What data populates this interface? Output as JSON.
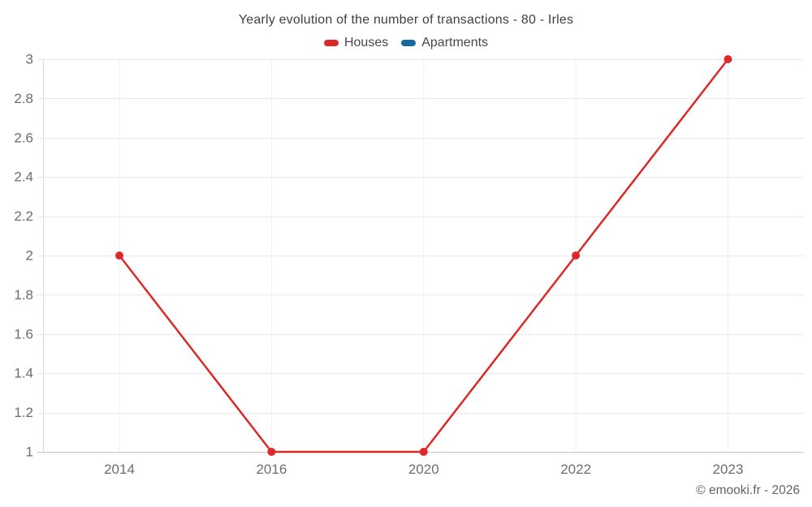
{
  "legend": {
    "items": [
      {
        "label": "Houses",
        "color": "#dc2928"
      },
      {
        "label": "Apartments",
        "color": "#136a9e"
      }
    ]
  },
  "chart_data": {
    "type": "line",
    "title": "Yearly evolution of the number of transactions - 80 - Irles",
    "categories": [
      "2014",
      "2016",
      "2020",
      "2022",
      "2023"
    ],
    "series": [
      {
        "name": "Houses",
        "color": "#dc2928",
        "values": [
          2,
          1,
          1,
          2,
          3
        ]
      },
      {
        "name": "Apartments",
        "color": "#136a9e",
        "values": []
      }
    ],
    "ylim": [
      1,
      3
    ],
    "yticks": [
      "3",
      "2.8",
      "2.6",
      "2.4",
      "2.2",
      "2",
      "1.8",
      "1.6",
      "1.4",
      "1.2",
      "1"
    ],
    "grid": true,
    "legend_position": "top",
    "marker": "circle"
  },
  "footer": {
    "watermark": "© emooki.fr - 2026"
  },
  "colors": {
    "h_grid": "#e9e9e9",
    "v_grid": "#efefef",
    "bottom_axis": "#c8c8c8",
    "left_axis": "#dcdcdc",
    "tick_label": "#6d6d6d"
  }
}
